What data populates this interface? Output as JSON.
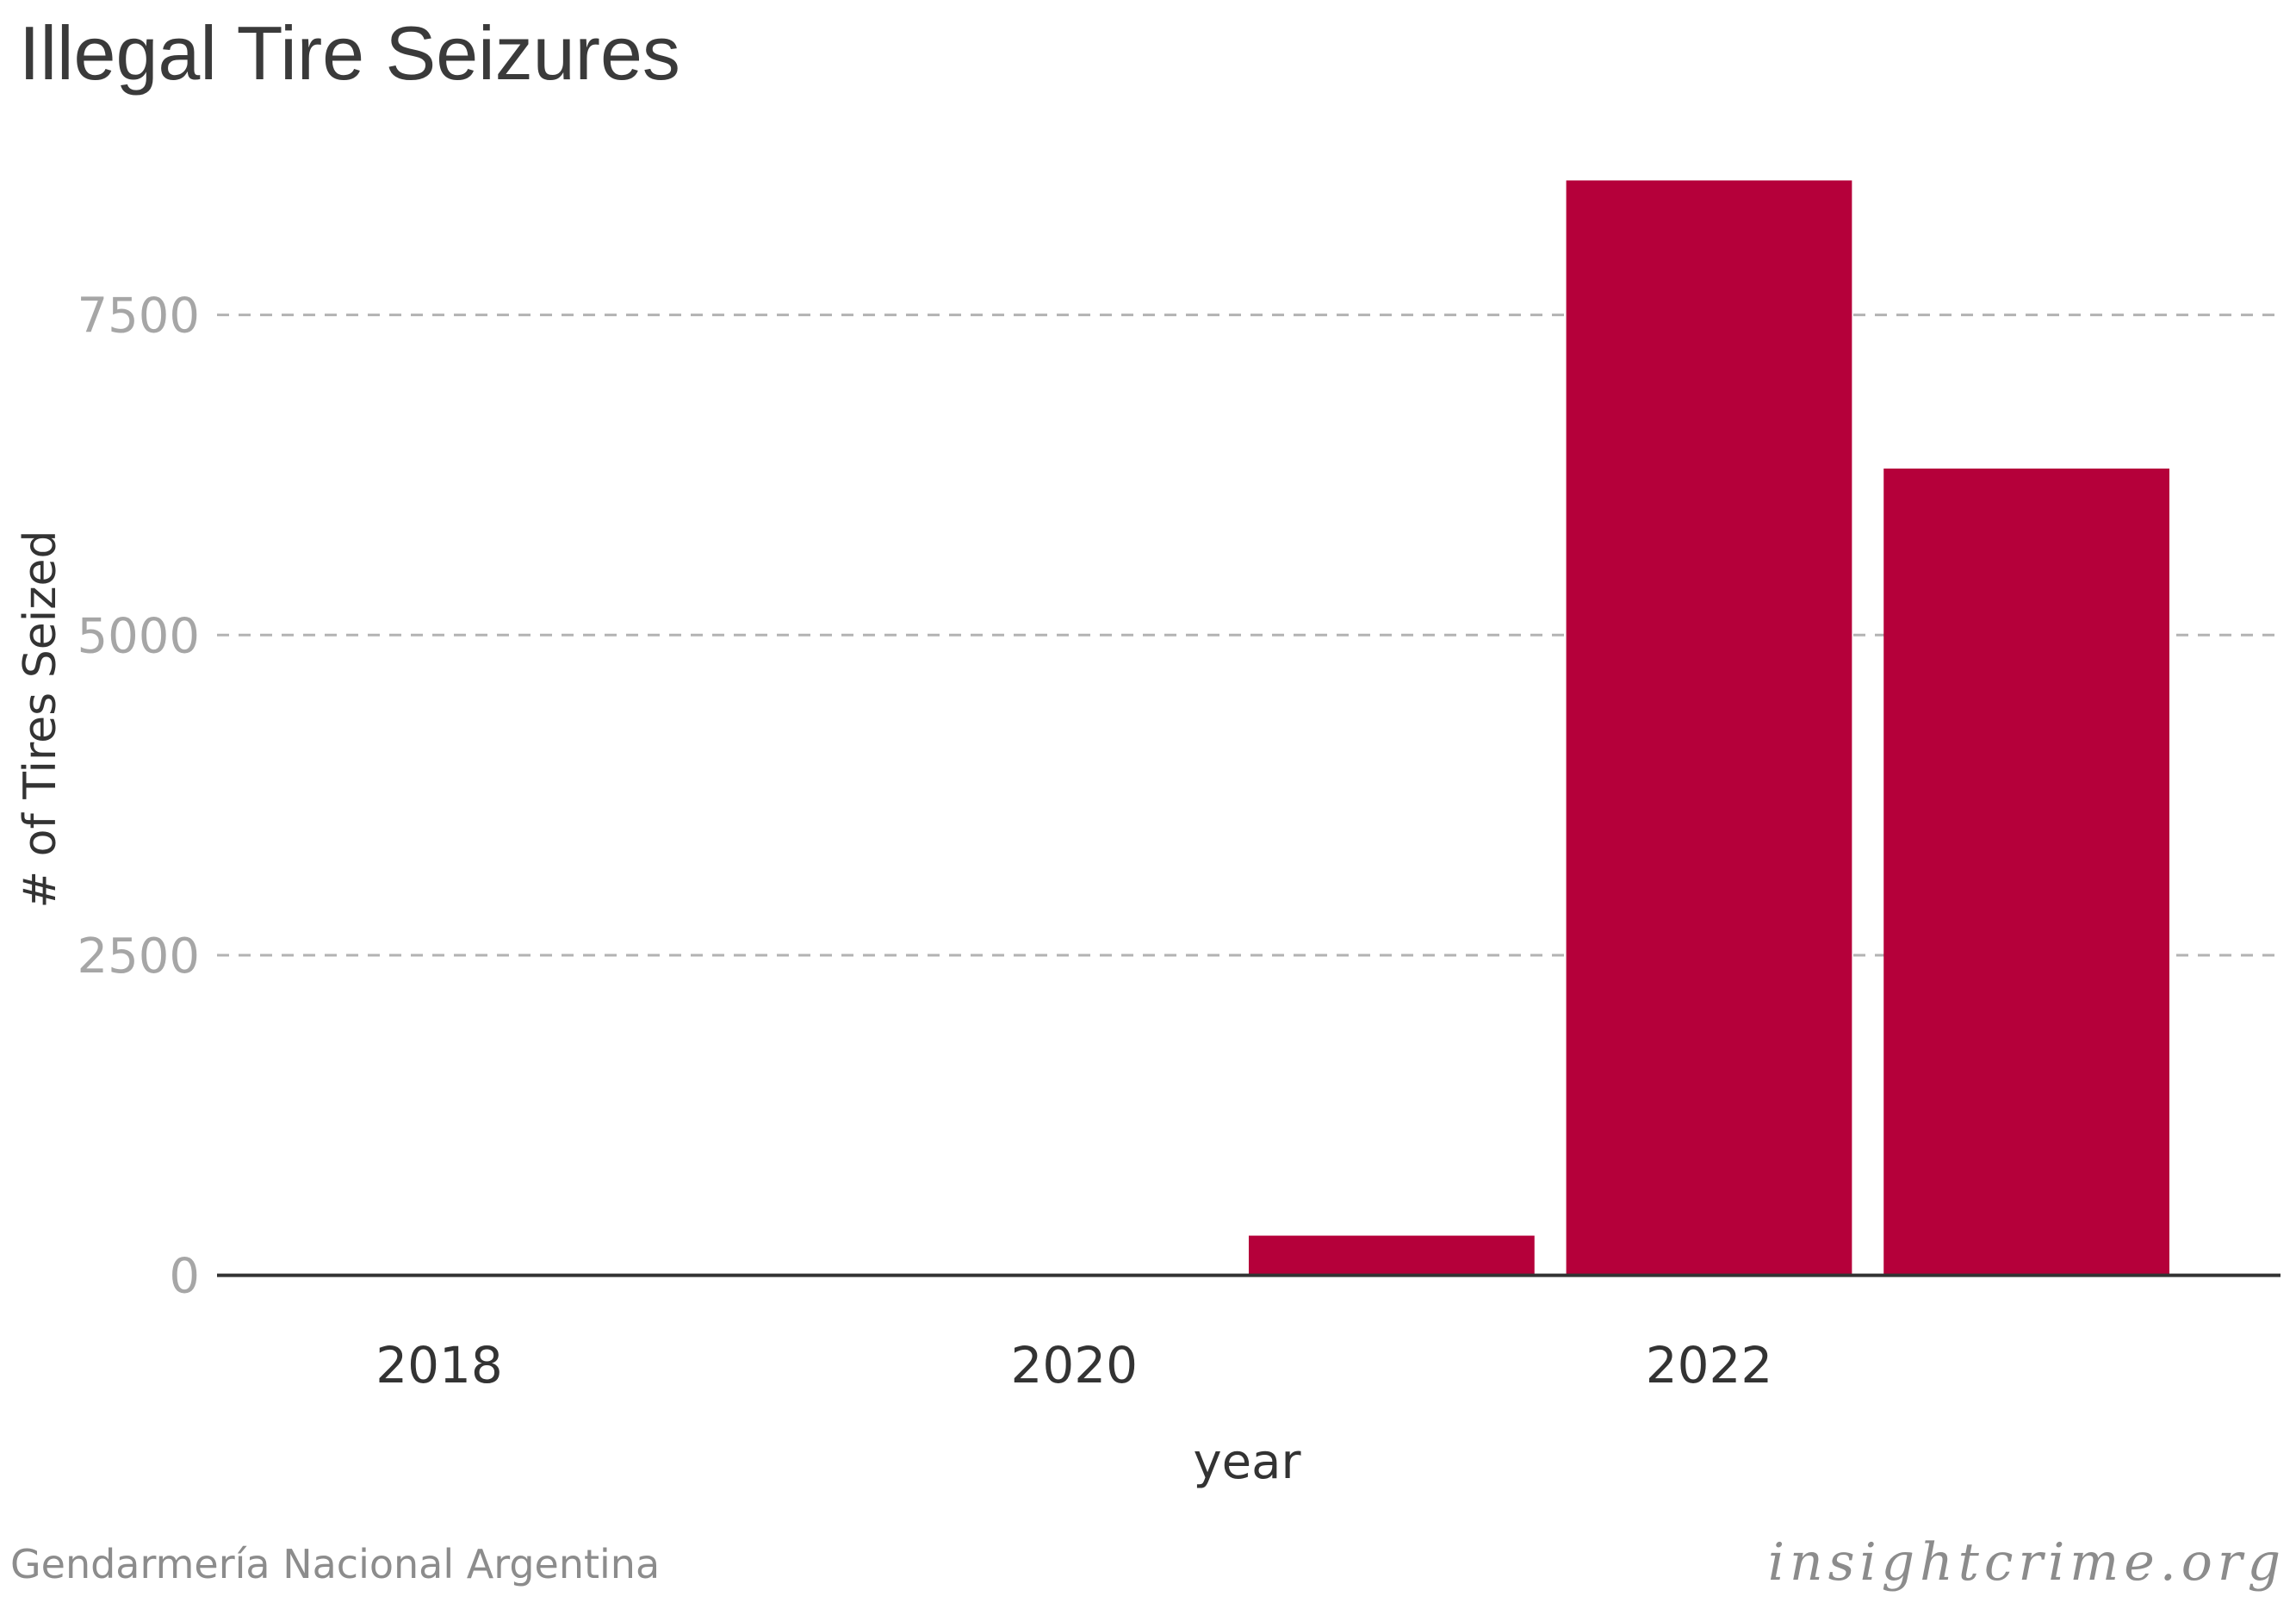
{
  "chart_data": {
    "type": "bar",
    "title": "Illegal Tire Seizures",
    "xlabel": "year",
    "ylabel": "# of Tires Seized",
    "x": [
      2021,
      2022,
      2023
    ],
    "values": [
      310,
      8550,
      6300
    ],
    "xlim": [
      2017.3,
      2023.8
    ],
    "ylim": [
      -500,
      8950
    ],
    "xticks": [
      "2018",
      "2020",
      "2022"
    ],
    "yticks": [
      "0",
      "2500",
      "5000",
      "7500"
    ],
    "grid": "horizontal dashed",
    "bar_color": "#b5003a",
    "source": "Gendarmería Nacional Argentina",
    "brand": "insightcrime.org"
  }
}
